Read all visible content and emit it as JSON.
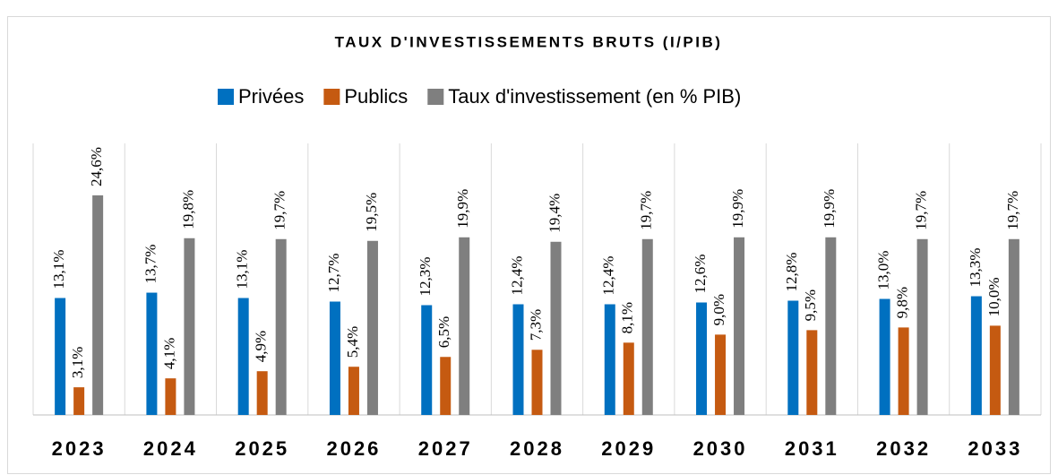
{
  "chart_data": {
    "type": "bar",
    "title": "TAUX D'INVESTISSEMENTS BRUTS (I/PIB)",
    "categories": [
      "2023",
      "2024",
      "2025",
      "2026",
      "2027",
      "2028",
      "2029",
      "2030",
      "2031",
      "2032",
      "2033"
    ],
    "series": [
      {
        "name": "Privées",
        "color": "#0070c0",
        "values": [
          13.1,
          13.7,
          13.1,
          12.7,
          12.3,
          12.4,
          12.4,
          12.6,
          12.8,
          13.0,
          13.3
        ],
        "value_labels": [
          "13,1%",
          "13,7%",
          "13,1%",
          "12,7%",
          "12,3%",
          "12,4%",
          "12,4%",
          "12,6%",
          "12,8%",
          "13,0%",
          "13,3%"
        ]
      },
      {
        "name": "Publics",
        "color": "#c55a11",
        "values": [
          3.1,
          4.1,
          4.9,
          5.4,
          6.5,
          7.3,
          8.1,
          9.0,
          9.5,
          9.8,
          10.0
        ],
        "value_labels": [
          "3,1%",
          "4,1%",
          "4,9%",
          "5,4%",
          "6,5%",
          "7,3%",
          "8,1%",
          "9,0%",
          "9,5%",
          "9,8%",
          "10,0%"
        ]
      },
      {
        "name": "Taux d'investissement (en % PIB)",
        "color": "#7f7f7f",
        "values": [
          24.6,
          19.8,
          19.7,
          19.5,
          19.9,
          19.4,
          19.7,
          19.9,
          19.9,
          19.7,
          19.7
        ],
        "value_labels": [
          "24,6%",
          "19,8%",
          "19,7%",
          "19,5%",
          "19,9%",
          "19,4%",
          "19,7%",
          "19,9%",
          "19,9%",
          "19,7%",
          "19,7%"
        ]
      }
    ],
    "legend": "top"
  }
}
